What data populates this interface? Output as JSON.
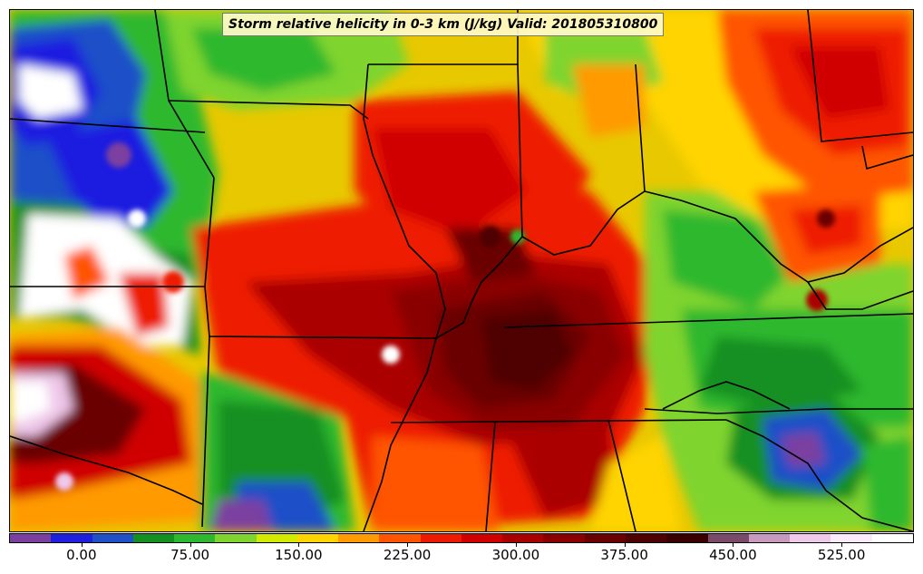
{
  "map": {
    "title": "Storm relative helicity in 0-3 km (J/kg) Valid: 201805310800",
    "field": "Storm relative helicity in 0-3 km",
    "units": "J/kg",
    "valid_time": "201805310800"
  },
  "colorbar": {
    "colors": [
      "#7b3fa0",
      "#1f1fe0",
      "#1f50c8",
      "#139020",
      "#2fb82f",
      "#7fd42f",
      "#d2ea00",
      "#ffd400",
      "#ff9a00",
      "#ff5500",
      "#ee1a00",
      "#d00000",
      "#aa0000",
      "#8a0000",
      "#6a0000",
      "#4f0000",
      "#3a0000",
      "#7a4a6a",
      "#c89abf",
      "#efc8ea",
      "#faeafa",
      "#ffffff"
    ],
    "labels": [
      "0.00",
      "75.00",
      "150.00",
      "225.00",
      "300.00",
      "375.00",
      "450.00",
      "525.00"
    ],
    "levels": [
      0,
      75,
      150,
      225,
      300,
      375,
      450,
      525
    ]
  }
}
